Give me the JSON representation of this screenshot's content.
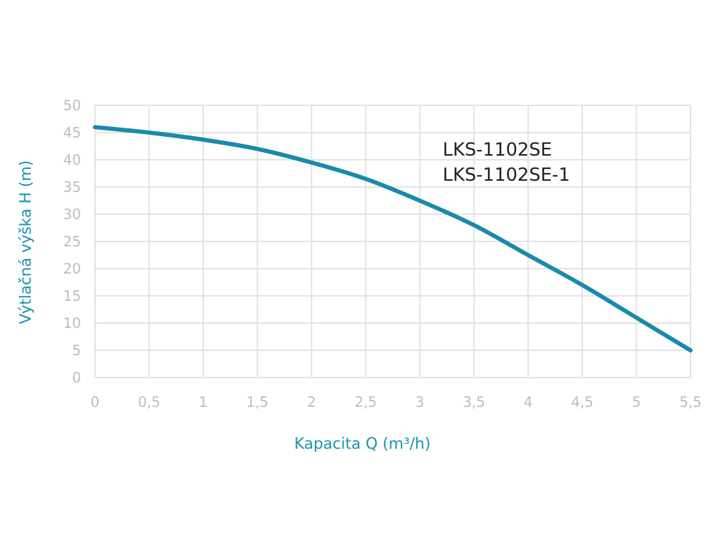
{
  "chart_data": {
    "type": "line",
    "title": "",
    "xlabel": "Kapacita Q (m³/h)",
    "ylabel": "Výtlačná výška H (m)",
    "xlim": [
      0,
      5.5
    ],
    "ylim": [
      0,
      50
    ],
    "x_ticks": [
      "0",
      "0,5",
      "1",
      "1,5",
      "2",
      "2,5",
      "3",
      "3,5",
      "4",
      "4,5",
      "5",
      "5,5"
    ],
    "y_ticks": [
      "0",
      "5",
      "10",
      "15",
      "20",
      "25",
      "30",
      "35",
      "40",
      "45",
      "50"
    ],
    "grid": true,
    "annotations": [
      "LKS-1102SE",
      "LKS-1102SE-1"
    ],
    "colors": {
      "series": "#1a8aab",
      "axis_title": "#1a93b1",
      "tick": "#bdbdbd",
      "grid": "#e3e3e3",
      "annotation": "#222222"
    },
    "series": [
      {
        "x": [
          0,
          0.5,
          1,
          1.5,
          2,
          2.5,
          3,
          3.5,
          4,
          4.5,
          5,
          5.5
        ],
        "values": [
          46,
          45,
          43.7,
          42,
          39.5,
          36.5,
          32.5,
          28,
          22.5,
          17,
          11,
          5
        ]
      }
    ]
  }
}
